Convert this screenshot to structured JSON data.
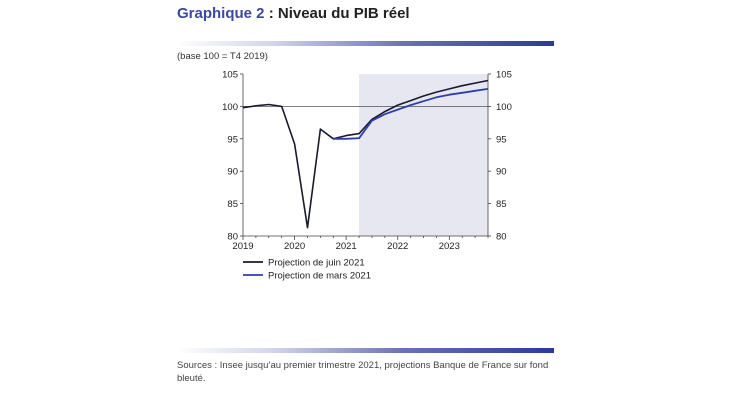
{
  "header": {
    "title_prefix": "Graphique 2",
    "title_text": " : Niveau du PIB réel"
  },
  "subtitle": "(base 100 = T4 2019)",
  "source": "Sources : Insee jusqu’au premier trimestre 2021, projections Banque de France sur fond bleuté.",
  "colors": {
    "accent": "#2b3a96",
    "title_prefix": "#3a4aa0",
    "june_series": "#1a1a2e",
    "march_series": "#2e3fa8",
    "projection_band": "#e6e7f1"
  },
  "chart_data": {
    "type": "line",
    "title": "Niveau du PIB réel",
    "xlabel": "",
    "ylabel": "",
    "xlim": [
      2019.0,
      2023.75
    ],
    "ylim": [
      80,
      105
    ],
    "yticks": [
      80,
      85,
      90,
      95,
      100,
      105
    ],
    "ytick_labels": [
      "80",
      "85",
      "90",
      "95",
      "100",
      "105"
    ],
    "xticks": [
      2019,
      2020,
      2021,
      2022,
      2023
    ],
    "xtick_labels": [
      "2019",
      "2020",
      "2021",
      "2022",
      "2023"
    ],
    "right_axis_mirrors_left": true,
    "reference_line": 100,
    "projection_start": 2021.25,
    "grid": false,
    "legend_position": "bottom-left",
    "series": [
      {
        "name": "Projection de juin 2021",
        "x": [
          2019.0,
          2019.25,
          2019.5,
          2019.75,
          2020.0,
          2020.25,
          2020.5,
          2020.75,
          2021.0,
          2021.25,
          2021.5,
          2021.75,
          2022.0,
          2022.25,
          2022.5,
          2022.75,
          2023.0,
          2023.25,
          2023.5,
          2023.75
        ],
        "values": [
          99.8,
          100.1,
          100.3,
          100.0,
          94.2,
          81.3,
          96.5,
          95.0,
          95.5,
          95.8,
          98.0,
          99.2,
          100.2,
          100.9,
          101.6,
          102.2,
          102.7,
          103.2,
          103.6,
          104.0
        ]
      },
      {
        "name": "Projection de mars 2021",
        "x": [
          2020.75,
          2021.0,
          2021.25,
          2021.5,
          2021.75,
          2022.0,
          2022.25,
          2022.5,
          2022.75,
          2023.0,
          2023.25,
          2023.5,
          2023.75
        ],
        "values": [
          95.0,
          95.0,
          95.1,
          97.8,
          98.8,
          99.5,
          100.2,
          100.8,
          101.4,
          101.8,
          102.1,
          102.4,
          102.7
        ]
      }
    ]
  }
}
